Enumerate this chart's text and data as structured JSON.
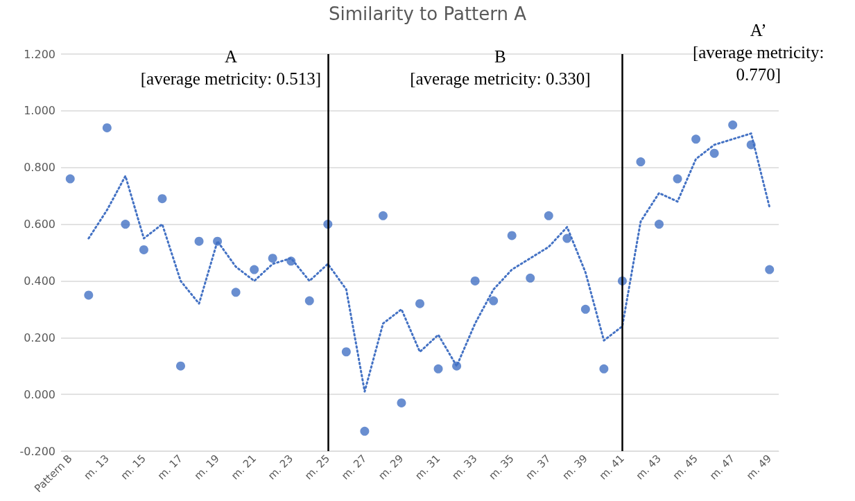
{
  "chart_data": {
    "type": "scatter",
    "title": "Similarity to Pattern A",
    "categories": [
      "Pattern B",
      null,
      "m. 13",
      null,
      "m. 15",
      null,
      "m. 17",
      null,
      "m. 19",
      null,
      "m. 21",
      null,
      "m. 23",
      null,
      "m. 25",
      null,
      "m. 27",
      null,
      "m. 29",
      null,
      "m. 31",
      null,
      "m. 33",
      null,
      "m. 35",
      null,
      "m. 37",
      null,
      "m. 39",
      null,
      "m. 41",
      null,
      "m. 43",
      null,
      "m. 45",
      null,
      "m. 47",
      null,
      "m. 49"
    ],
    "series": [
      {
        "color": "#4472c4",
        "marker": "circle",
        "values": [
          0.76,
          0.35,
          0.94,
          0.6,
          0.51,
          0.69,
          0.1,
          0.54,
          0.54,
          0.36,
          0.44,
          0.48,
          0.47,
          0.33,
          0.6,
          0.15,
          -0.13,
          0.63,
          -0.03,
          0.32,
          0.09,
          0.1,
          0.4,
          0.33,
          0.56,
          0.41,
          0.63,
          0.55,
          0.3,
          0.09,
          0.4,
          0.82,
          0.6,
          0.76,
          0.9,
          0.85,
          0.95,
          0.88,
          0.44
        ]
      },
      {
        "type": "line",
        "color": "#4472c4",
        "marker": "none",
        "line_style": "dotted",
        "values": [
          null,
          0.55,
          0.65,
          0.77,
          0.55,
          0.6,
          0.4,
          0.32,
          0.54,
          0.45,
          0.4,
          0.46,
          0.48,
          0.4,
          0.46,
          0.37,
          0.01,
          0.25,
          0.3,
          0.15,
          0.21,
          0.1,
          0.25,
          0.37,
          0.44,
          0.48,
          0.52,
          0.59,
          0.43,
          0.19,
          0.24,
          0.61,
          0.71,
          0.68,
          0.83,
          0.88,
          0.9,
          0.92,
          0.66
        ]
      }
    ],
    "ylim": [
      -0.2,
      1.2
    ],
    "yticks": [
      {
        "value": -0.2,
        "label": "-0.200"
      },
      {
        "value": 0,
        "label": "0.000"
      },
      {
        "value": 0.2,
        "label": "0.200"
      },
      {
        "value": 0.4,
        "label": "0.400"
      },
      {
        "value": 0.6,
        "label": "0.600"
      },
      {
        "value": 0.8,
        "label": "0.800"
      },
      {
        "value": 1.0,
        "label": "1.000"
      },
      {
        "value": 1.2,
        "label": "1.200"
      }
    ],
    "grid": "y",
    "ref_lines": [
      {
        "axis": "x",
        "value": "m. 25",
        "color": "#000000",
        "line_style": "solid"
      },
      {
        "axis": "x",
        "value": "m. 41",
        "color": "#000000",
        "line_style": "solid"
      }
    ],
    "annotations": [
      "A\n[average metricity: 0.513]",
      "B\n[average metricity: 0.330]",
      "A’\n[average metricity:\n0.770]"
    ]
  }
}
